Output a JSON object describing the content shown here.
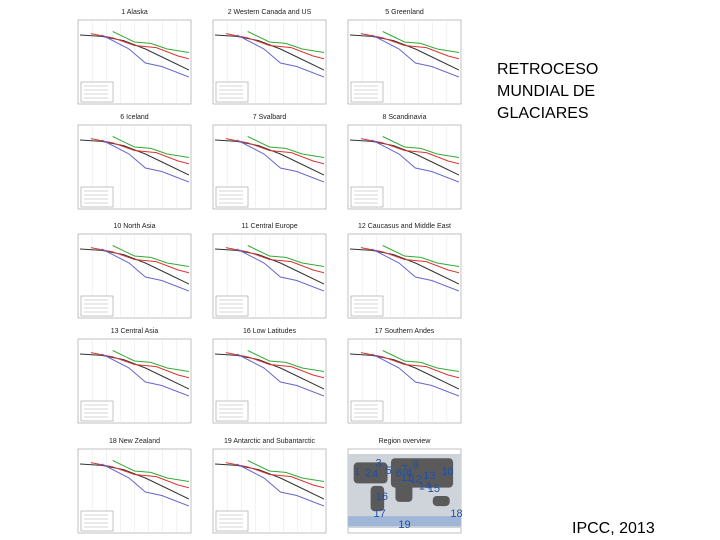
{
  "panels": [
    {
      "title": "1 Alaska"
    },
    {
      "title": "2 Western Canada and US"
    },
    {
      "title": "5 Greenland"
    },
    {
      "title": "6 Iceland"
    },
    {
      "title": "7 Svalbard"
    },
    {
      "title": "8 Scandinavia"
    },
    {
      "title": "10 North Asia"
    },
    {
      "title": "11 Central Europe"
    },
    {
      "title": "12 Caucasus and Middle East"
    },
    {
      "title": "13 Central Asia"
    },
    {
      "title": "16 Low Latitudes"
    },
    {
      "title": "17 Southern Andes"
    },
    {
      "title": "18 New Zealand"
    },
    {
      "title": "19 Antarctic and Subantarctic"
    }
  ],
  "overview": {
    "title": "Region overview",
    "labels": [
      "1",
      "2",
      "3",
      "4",
      "5",
      "6",
      "7",
      "8",
      "9",
      "10",
      "11",
      "12",
      "13",
      "14",
      "15",
      "16",
      "17",
      "18",
      "19"
    ]
  },
  "heading": {
    "lines": [
      "RETROCESO",
      "MUNDIAL DE",
      "GLACIARES"
    ]
  },
  "source": "IPCC, 2013"
}
